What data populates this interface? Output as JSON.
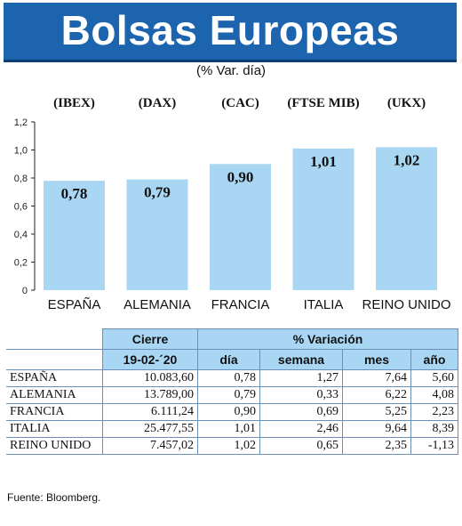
{
  "header": {
    "title": "Bolsas Europeas",
    "subtitle": "(% Var. día)"
  },
  "chart_data": {
    "type": "bar",
    "categories": [
      "ESPAÑA",
      "ALEMANIA",
      "FRANCIA",
      "ITALIA",
      "REINO UNIDO"
    ],
    "index_codes": [
      "(IBEX)",
      "(DAX)",
      "(CAC)",
      "(FTSE MIB)",
      "(UKX)"
    ],
    "values": [
      0.78,
      0.79,
      0.9,
      1.01,
      1.02
    ],
    "value_labels": [
      "0,78",
      "0,79",
      "0,90",
      "1,01",
      "1,02"
    ],
    "ylim": [
      0,
      1.2
    ],
    "yticks": [
      0,
      0.2,
      0.4,
      0.6,
      0.8,
      1.0,
      1.2
    ],
    "ytick_labels": [
      "0",
      "0,2",
      "0,4",
      "0,6",
      "0,8",
      "1,0",
      "1,2"
    ],
    "grid": false,
    "bar_color": "#a9d6f2"
  },
  "table": {
    "group_headers": {
      "cierre": "Cierre",
      "variacion": "% Variación"
    },
    "sub_headers": [
      "19-02-´20",
      "día",
      "semana",
      "mes",
      "año"
    ],
    "rows": [
      {
        "country": "ESPAÑA",
        "cierre": "10.083,60",
        "dia": "0,78",
        "semana": "1,27",
        "mes": "7,64",
        "ano": "5,60"
      },
      {
        "country": "ALEMANIA",
        "cierre": "13.789,00",
        "dia": "0,79",
        "semana": "0,33",
        "mes": "6,22",
        "ano": "4,08"
      },
      {
        "country": "FRANCIA",
        "cierre": "6.111,24",
        "dia": "0,90",
        "semana": "0,69",
        "mes": "5,25",
        "ano": "2,23"
      },
      {
        "country": "ITALIA",
        "cierre": "25.477,55",
        "dia": "1,01",
        "semana": "2,46",
        "mes": "9,64",
        "ano": "8,39"
      },
      {
        "country": "REINO UNIDO",
        "cierre": "7.457,02",
        "dia": "1,02",
        "semana": "0,65",
        "mes": "2,35",
        "ano": "-1,13"
      }
    ]
  },
  "source": "Fuente: Bloomberg.",
  "colors": {
    "banner": "#1c64ae",
    "header_fill": "#a9d6f2",
    "border": "#6a8fb8"
  }
}
